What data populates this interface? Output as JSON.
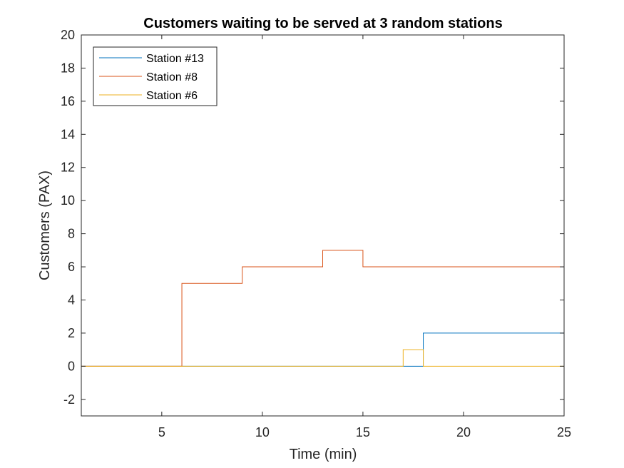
{
  "chart_data": {
    "type": "line",
    "step": true,
    "title": "Customers waiting to be served at 3 random stations",
    "xlabel": "Time (min)",
    "ylabel": "Customers (PAX)",
    "xlim": [
      1,
      25
    ],
    "ylim": [
      -3,
      20
    ],
    "xticks": [
      5,
      10,
      15,
      20,
      25
    ],
    "yticks": [
      -2,
      0,
      2,
      4,
      6,
      8,
      10,
      12,
      14,
      16,
      18,
      20
    ],
    "grid": false,
    "legend_position": "top-left",
    "series": [
      {
        "name": "Station #13",
        "color": "#0072BD",
        "x": [
          1,
          18,
          25
        ],
        "values": [
          0,
          2,
          2
        ]
      },
      {
        "name": "Station #8",
        "color": "#D95319",
        "x": [
          1,
          6,
          9,
          13,
          15,
          25
        ],
        "values": [
          0,
          5,
          6,
          7,
          6,
          6
        ]
      },
      {
        "name": "Station #6",
        "color": "#EDB120",
        "x": [
          1,
          17,
          18,
          25
        ],
        "values": [
          0,
          1,
          0,
          0
        ]
      }
    ]
  }
}
